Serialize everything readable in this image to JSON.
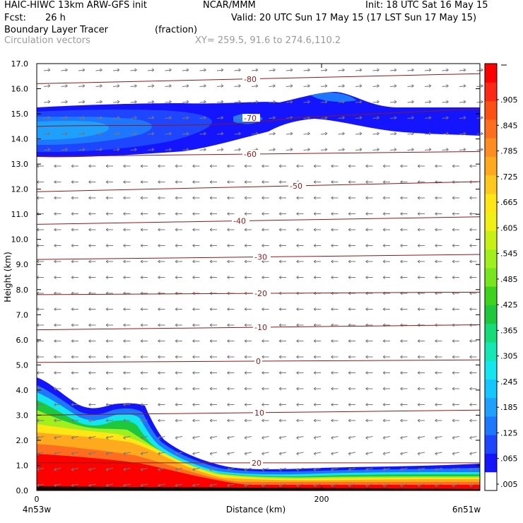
{
  "header": {
    "model": "HAIC-HIWC 13km ARW-GFS init",
    "org": "NCAR/MMM",
    "init": "Init: 18 UTC Sat 16 May 15",
    "fcst_label": "Fcst:",
    "fcst_value": "26 h",
    "valid": "Valid: 20 UTC Sun 17 May 15 (17 LST Sun 17 May 15)",
    "field": "Boundary Layer Tracer",
    "units": "(fraction)",
    "vectors": "Circulation vectors",
    "xy": "XY= 259.5, 91.6 to 274.6,110.2"
  },
  "chart_data": {
    "type": "heatmap",
    "xlabel": "Distance (km)",
    "ylabel": "Height (km)",
    "x_ticks": [
      "0",
      "200"
    ],
    "x_end_labels": [
      "4n53w",
      "6n51w"
    ],
    "xlim": [
      0,
      320
    ],
    "ylim": [
      0,
      17
    ],
    "y_ticks": [
      "0.0",
      "1.0",
      "2.0",
      "3.0",
      "4.0",
      "5.0",
      "6.0",
      "7.0",
      "8.0",
      "9.0",
      "10.0",
      "11.0",
      "12.0",
      "13.0",
      "14.0",
      "15.0",
      "16.0",
      "17.0"
    ],
    "colorbar_labels": [
      ".005",
      ".065",
      ".125",
      ".185",
      ".245",
      ".305",
      ".365",
      ".425",
      ".485",
      ".545",
      ".605",
      ".665",
      ".725",
      ".785",
      ".845",
      ".905"
    ],
    "colorbar_colors": [
      "#ffffff",
      "#1414ff",
      "#1e46ff",
      "#1e78ff",
      "#1ea0ff",
      "#14c8ff",
      "#14e6f0",
      "#14e6b4",
      "#14dc78",
      "#1ec83c",
      "#3cd21e",
      "#78e61e",
      "#a0f01e",
      "#c8f014",
      "#f0f014",
      "#ffe614",
      "#ffc81e",
      "#ffaa1e",
      "#ff8c1e",
      "#ff6e1e",
      "#ff5014",
      "#ff2814",
      "#ff0000"
    ],
    "temperature_contours": [
      {
        "label": "-80",
        "z_left": 16.2,
        "z_right": 16.6
      },
      {
        "label": "-70",
        "z_left": 14.5,
        "z_right": 15.2
      },
      {
        "label": "-60",
        "z_left": 13.3,
        "z_right": 13.5
      },
      {
        "label": "-50",
        "z_left": 11.9,
        "z_right": 12.3
      },
      {
        "label": "-40",
        "z_left": 10.6,
        "z_right": 10.9
      },
      {
        "label": "-30",
        "z_left": 9.2,
        "z_right": 9.4
      },
      {
        "label": "-20",
        "z_left": 7.8,
        "z_right": 7.9
      },
      {
        "label": "-10",
        "z_left": 6.4,
        "z_right": 6.6
      },
      {
        "label": "0",
        "z_left": 5.1,
        "z_right": 5.2
      },
      {
        "label": "10",
        "z_left": 3.0,
        "z_right": 3.2
      },
      {
        "label": "20",
        "z_left": 1.1,
        "z_right": 1.1
      }
    ],
    "upper_layer": {
      "z_bottom": 13.3,
      "z_top": 15.3,
      "description": "anvil-level tracer plume 0.005 to 0.4"
    },
    "boundary_layer": {
      "max_fraction": 1.0,
      "max_depth_km": 4.5
    }
  }
}
